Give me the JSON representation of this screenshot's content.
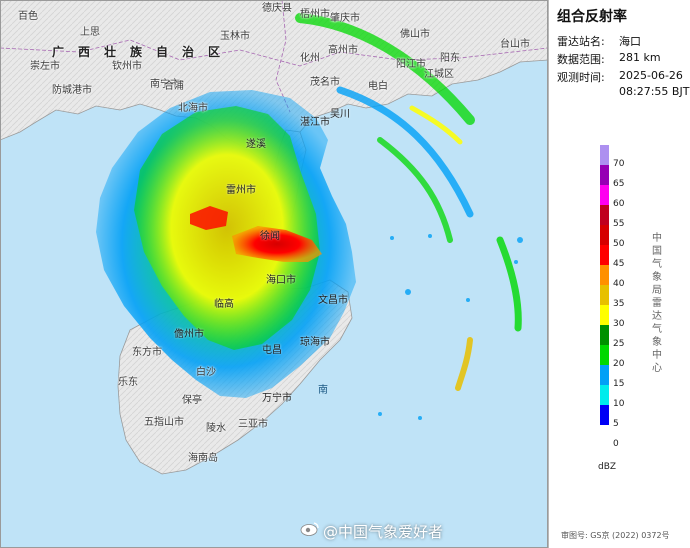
{
  "panel": {
    "title": "组合反射率",
    "station_label": "雷达站名:",
    "station_value": "海口",
    "range_label": "数据范围:",
    "range_value": "281 km",
    "time_label": "观测时间:",
    "time_date": "2025-06-26",
    "time_clock": "08:27:55 BJT"
  },
  "legend": {
    "unit": "dBZ",
    "source": "中国气象局雷达气象中心",
    "ticks": [
      "70",
      "65",
      "60",
      "55",
      "50",
      "45",
      "40",
      "35",
      "30",
      "25",
      "20",
      "15",
      "10",
      "5",
      "0"
    ],
    "colors": [
      "#ad90f0",
      "#9600b4",
      "#ff00f0",
      "#c0001e",
      "#d60000",
      "#ff0000",
      "#ff9000",
      "#e7c000",
      "#ffff00",
      "#009000",
      "#00d800",
      "#01a0f6",
      "#00ecec",
      "#0000f6",
      "#ffffff"
    ]
  },
  "approval": "审图号: GS京 (2022) 0372号",
  "watermark": "@中国气象爱好者",
  "map": {
    "region_name": "广西壮族自治区",
    "places": [
      "百色",
      "南宁市",
      "玉林市",
      "梧州市",
      "德庆县",
      "肇庆市",
      "佛山市",
      "上思",
      "崇左市",
      "钦州市",
      "北海市",
      "防城港市",
      "合浦",
      "化州",
      "高州市",
      "茂名市",
      "湛江市",
      "电白",
      "阳江市",
      "江城区",
      "阳东",
      "台山市",
      "吴川",
      "遂溪",
      "雷州市",
      "徐闻",
      "海口市",
      "文昌市",
      "琼海市",
      "万宁市",
      "临高",
      "儋州市",
      "屯昌",
      "白沙",
      "东方市",
      "乐东",
      "五指山市",
      "保亭",
      "陵水",
      "三亚市",
      "海南岛",
      "南"
    ]
  }
}
